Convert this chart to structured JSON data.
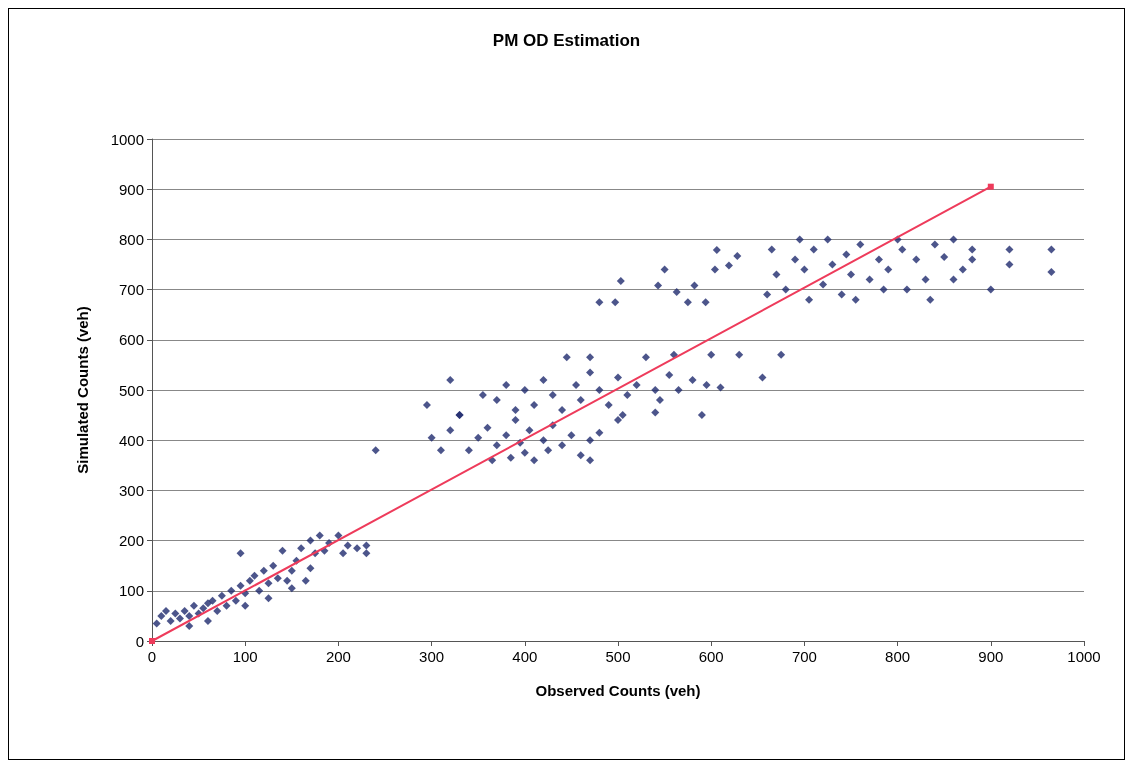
{
  "chart_data": {
    "type": "scatter",
    "title": "PM OD Estimation",
    "xlabel": "Observed Counts (veh)",
    "ylabel": "Simulated Counts (veh)",
    "xlim": [
      0,
      1000
    ],
    "xticks": [
      0,
      100,
      200,
      300,
      400,
      500,
      600,
      700,
      800,
      900,
      1000
    ],
    "ylim": [
      0,
      1000
    ],
    "yticks": [
      0,
      100,
      200,
      300,
      400,
      500,
      600,
      700,
      800,
      900,
      1000
    ],
    "grid": "y",
    "series": [
      {
        "marker": "diamond",
        "color": "#1f2a6e",
        "x": [
          5,
          10,
          15,
          20,
          25,
          30,
          35,
          40,
          45,
          50,
          55,
          60,
          65,
          70,
          75,
          80,
          85,
          90,
          95,
          95,
          100,
          105,
          110,
          115,
          120,
          125,
          130,
          135,
          140,
          145,
          150,
          155,
          160,
          165,
          170,
          175,
          180,
          185,
          190,
          200,
          205,
          210,
          220,
          230,
          230,
          240,
          60,
          100,
          40,
          125,
          150,
          170,
          300,
          310,
          320,
          330,
          340,
          350,
          360,
          365,
          370,
          380,
          385,
          390,
          395,
          400,
          405,
          410,
          420,
          425,
          430,
          440,
          450,
          460,
          470,
          480,
          500,
          470,
          295,
          320,
          330,
          355,
          370,
          380,
          390,
          400,
          410,
          420,
          430,
          440,
          445,
          455,
          460,
          470,
          480,
          490,
          500,
          505,
          510,
          520,
          530,
          540,
          545,
          555,
          560,
          565,
          580,
          590,
          595,
          600,
          610,
          540,
          470,
          630,
          655,
          675,
          480,
          497,
          503,
          550,
          543,
          563,
          582,
          575,
          594,
          606,
          628,
          619,
          604,
          660,
          665,
          670,
          680,
          690,
          695,
          700,
          705,
          710,
          720,
          725,
          730,
          740,
          745,
          750,
          755,
          760,
          770,
          780,
          785,
          790,
          800,
          805,
          810,
          820,
          830,
          835,
          840,
          850,
          860,
          870,
          880,
          900,
          920,
          920,
          965,
          965,
          860,
          880
        ],
        "values": [
          35,
          50,
          60,
          40,
          55,
          45,
          60,
          50,
          70,
          55,
          65,
          75,
          80,
          60,
          90,
          70,
          100,
          80,
          110,
          175,
          95,
          120,
          130,
          100,
          140,
          115,
          150,
          125,
          180,
          120,
          140,
          160,
          185,
          120,
          200,
          175,
          210,
          180,
          195,
          210,
          175,
          190,
          185,
          190,
          175,
          380,
          40,
          70,
          30,
          85,
          105,
          145,
          405,
          380,
          420,
          450,
          380,
          405,
          425,
          360,
          390,
          410,
          365,
          440,
          395,
          375,
          420,
          360,
          400,
          380,
          430,
          390,
          410,
          370,
          400,
          415,
          440,
          360,
          470,
          520,
          450,
          490,
          480,
          510,
          460,
          500,
          470,
          520,
          490,
          460,
          565,
          510,
          480,
          535,
          500,
          470,
          525,
          450,
          490,
          510,
          565,
          500,
          480,
          530,
          570,
          500,
          520,
          450,
          510,
          570,
          505,
          455,
          565,
          570,
          525,
          570,
          675,
          675,
          717,
          740,
          708,
          695,
          708,
          675,
          675,
          779,
          767,
          748,
          740,
          690,
          780,
          730,
          700,
          760,
          800,
          740,
          680,
          780,
          710,
          800,
          750,
          690,
          770,
          730,
          680,
          790,
          720,
          760,
          700,
          740,
          800,
          780,
          700,
          760,
          720,
          680,
          790,
          765,
          800,
          740,
          780,
          700,
          780,
          750,
          780,
          735,
          720,
          760
        ]
      },
      {
        "type": "line",
        "marker": "square",
        "color": "#ee3b5b",
        "x": [
          0,
          900
        ],
        "values": [
          0,
          905
        ]
      }
    ]
  }
}
